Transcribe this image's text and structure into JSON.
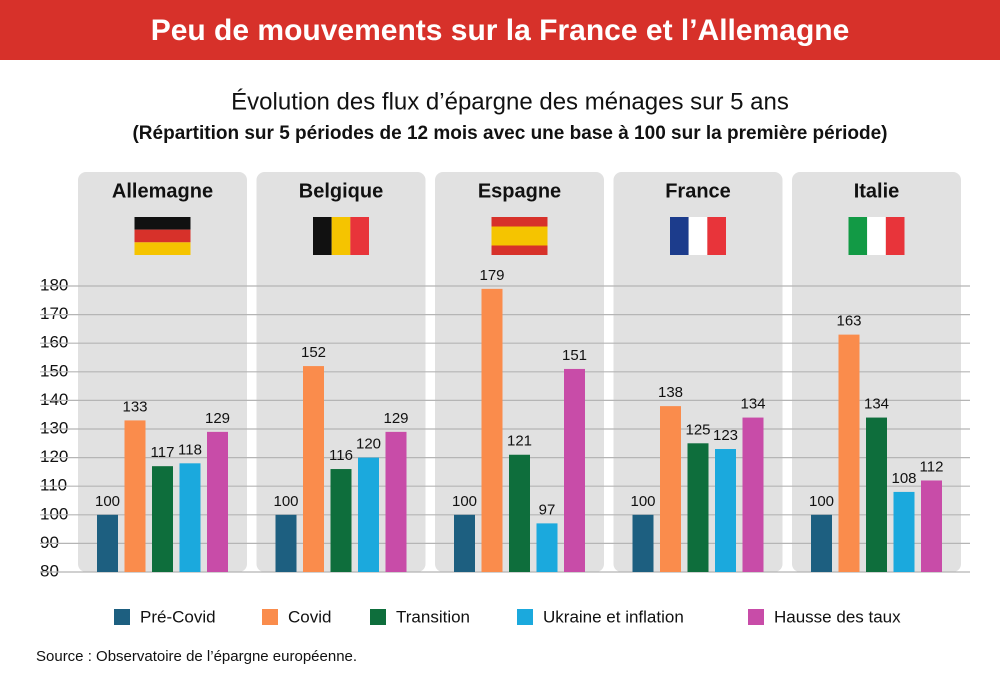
{
  "chart_data": {
    "type": "bar",
    "title": "Peu de mouvements sur la France et l’Allemagne",
    "subtitle": "Évolution des flux d’épargne des ménages sur 5 ans",
    "note": "(Répartition sur 5 périodes de 12 mois avec une base à 100 sur la première période)",
    "source": "Source : Observatoire de l’épargne européenne.",
    "categories": [
      "Allemagne",
      "Belgique",
      "Espagne",
      "France",
      "Italie"
    ],
    "series": [
      {
        "name": "Pré-Covid",
        "color": "#1d5f80",
        "values": [
          100,
          100,
          100,
          100,
          100
        ]
      },
      {
        "name": "Covid",
        "color": "#fa8c4c",
        "values": [
          133,
          152,
          179,
          138,
          163
        ]
      },
      {
        "name": "Transition",
        "color": "#0e6e3c",
        "values": [
          117,
          116,
          121,
          125,
          134
        ]
      },
      {
        "name": "Ukraine et inflation",
        "color": "#1ba9dd",
        "values": [
          118,
          120,
          97,
          123,
          108
        ]
      },
      {
        "name": "Hausse des taux",
        "color": "#c84ca8",
        "values": [
          129,
          129,
          151,
          134,
          112
        ]
      }
    ],
    "ylim": [
      80,
      180
    ],
    "yticks": [
      80,
      90,
      100,
      110,
      120,
      130,
      140,
      150,
      160,
      170,
      180
    ],
    "grid": true
  }
}
